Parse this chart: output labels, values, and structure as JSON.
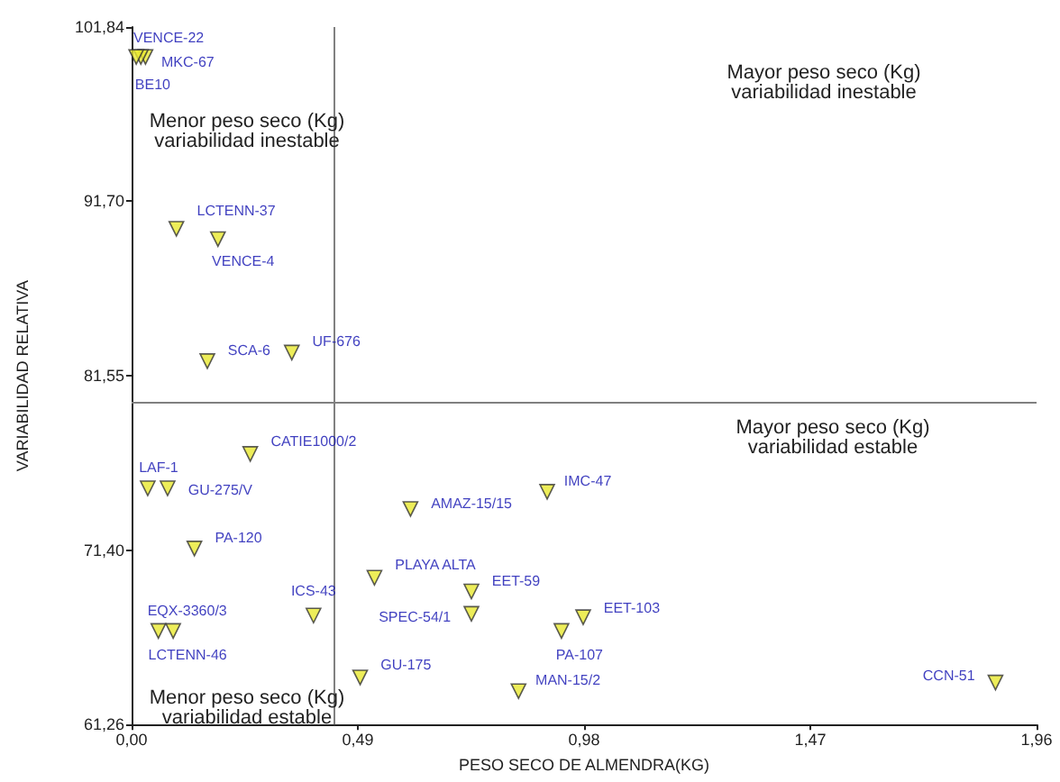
{
  "chart_data": {
    "type": "scatter",
    "xlabel": "PESO SECO DE ALMENDRA(KG)",
    "ylabel": "VARIABILIDAD RELATIVA",
    "xlim": [
      0,
      1.96
    ],
    "xticks": [
      {
        "value": 0,
        "label": "0,00"
      },
      {
        "value": 0.49,
        "label": "0,49"
      },
      {
        "value": 0.98,
        "label": "0,98"
      },
      {
        "value": 1.47,
        "label": "1,47"
      },
      {
        "value": 1.96,
        "label": "1,96"
      }
    ],
    "ylim": [
      61.26,
      101.84
    ],
    "yticks": [
      {
        "value": 61.26,
        "label": "61,26"
      },
      {
        "value": 71.4,
        "label": "71,40"
      },
      {
        "value": 81.55,
        "label": "81,55"
      },
      {
        "value": 91.7,
        "label": "91,70"
      },
      {
        "value": 101.84,
        "label": "101,84"
      }
    ],
    "grid": false,
    "legend": false,
    "marker": "triangle",
    "ref_lines": [
      {
        "axis": "x",
        "value": 0.436,
        "color": "#808080"
      },
      {
        "axis": "y",
        "value": 80.05,
        "color": "#808080"
      }
    ],
    "annotations": [
      "Menor peso seco (Kg)\nvariabilidad inestable",
      "Mayor peso seco (Kg)\nvariabilidad inestable",
      "Mayor peso seco (Kg)\nvariabilidad estable",
      "Menor peso seco (Kg)\nvariabilidad estable"
    ],
    "series": [
      {
        "name": "VENCE-22",
        "color": "#e8e830",
        "x": [
          0.01
        ],
        "values": [
          100.1
        ]
      },
      {
        "name": "MKC-67",
        "color": "#e8e830",
        "x": [
          0.02
        ],
        "values": [
          100.1
        ]
      },
      {
        "name": "BE10",
        "color": "#e8e830",
        "x": [
          0.03
        ],
        "values": [
          100.1
        ]
      },
      {
        "name": "LCTENN-37",
        "color": "#e8e830",
        "x": [
          0.097
        ],
        "values": [
          90.1
        ]
      },
      {
        "name": "VENCE-4",
        "color": "#e8e830",
        "x": [
          0.187
        ],
        "values": [
          89.5
        ]
      },
      {
        "name": "SCA-6",
        "color": "#e8e830",
        "x": [
          0.164
        ],
        "values": [
          82.4
        ]
      },
      {
        "name": "UF-676",
        "color": "#e8e830",
        "x": [
          0.347
        ],
        "values": [
          82.9
        ]
      },
      {
        "name": "CATIE1000/2",
        "color": "#e8e830",
        "x": [
          0.257
        ],
        "values": [
          77.0
        ]
      },
      {
        "name": "LAF-1",
        "color": "#e8e830",
        "x": [
          0.035
        ],
        "values": [
          75.0
        ]
      },
      {
        "name": "GU-275/V",
        "color": "#e8e830",
        "x": [
          0.078
        ],
        "values": [
          75.0
        ]
      },
      {
        "name": "PA-120",
        "color": "#e8e830",
        "x": [
          0.136
        ],
        "values": [
          71.5
        ]
      },
      {
        "name": "AMAZ-15/15",
        "color": "#e8e830",
        "x": [
          0.604
        ],
        "values": [
          73.8
        ]
      },
      {
        "name": "PLAYA ALTA",
        "color": "#e8e830",
        "x": [
          0.526
        ],
        "values": [
          69.8
        ]
      },
      {
        "name": "EET-59",
        "color": "#e8e830",
        "x": [
          0.736
        ],
        "values": [
          69.0
        ]
      },
      {
        "name": "SPEC-54/1",
        "color": "#e8e830",
        "x": [
          0.736
        ],
        "values": [
          67.7
        ]
      },
      {
        "name": "ICS-43",
        "color": "#e8e830",
        "x": [
          0.394
        ],
        "values": [
          67.6
        ]
      },
      {
        "name": "EQX-3360/3",
        "color": "#e8e830",
        "x": [
          0.058
        ],
        "values": [
          66.7
        ]
      },
      {
        "name": "LCTENN-46",
        "color": "#e8e830",
        "x": [
          0.09
        ],
        "values": [
          66.7
        ]
      },
      {
        "name": "GU-175",
        "color": "#e8e830",
        "x": [
          0.495
        ],
        "values": [
          64.0
        ]
      },
      {
        "name": "MAN-15/2",
        "color": "#e8e830",
        "x": [
          0.838
        ],
        "values": [
          63.2
        ]
      },
      {
        "name": "IMC-47",
        "color": "#e8e830",
        "x": [
          0.9
        ],
        "values": [
          74.8
        ]
      },
      {
        "name": "EET-103",
        "color": "#e8e830",
        "x": [
          0.978
        ],
        "values": [
          67.5
        ]
      },
      {
        "name": "PA-107",
        "color": "#e8e830",
        "x": [
          0.931
        ],
        "values": [
          66.7
        ]
      },
      {
        "name": "CCN-51",
        "color": "#e8e830",
        "x": [
          1.871
        ],
        "values": [
          63.7
        ]
      }
    ]
  }
}
